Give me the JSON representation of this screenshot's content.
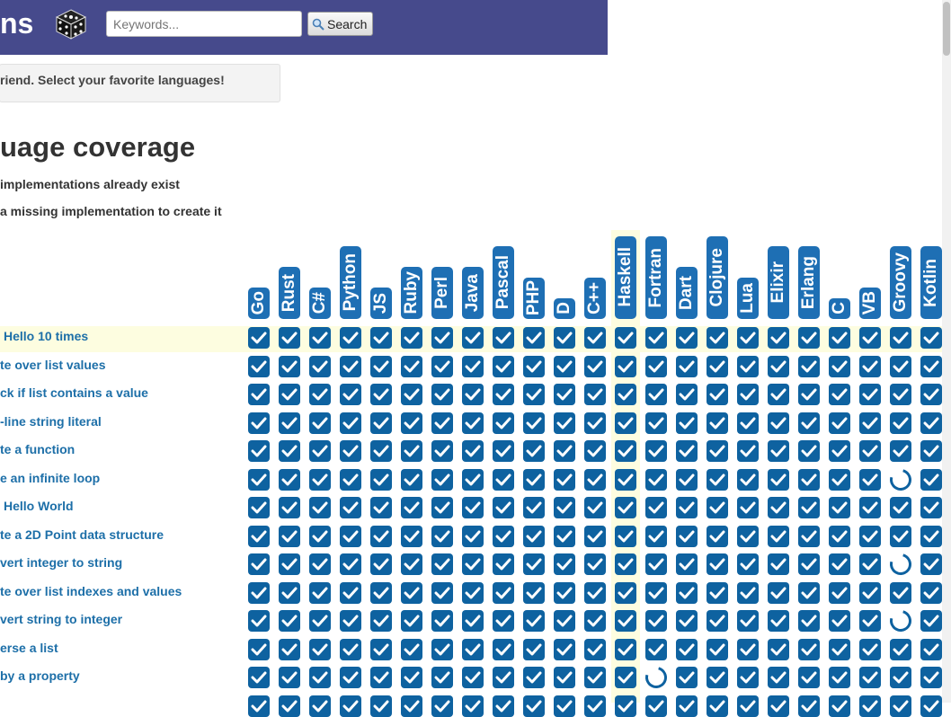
{
  "header": {
    "brand": "ns",
    "logo_icon": "dice-icon",
    "search": {
      "placeholder": "Keywords...",
      "value": "",
      "button_label": "Search",
      "button_icon": "magnifier-icon"
    },
    "colors": {
      "background": "#464a8c"
    }
  },
  "notice": {
    "text": "riend. Select your favorite languages!"
  },
  "coverage": {
    "title": "uage coverage",
    "legend_existing": "implementations already exist",
    "legend_missing": "a missing implementation to create it"
  },
  "languages": [
    "Go",
    "Rust",
    "C#",
    "Python",
    "JS",
    "Ruby",
    "Perl",
    "Java",
    "Pascal",
    "PHP",
    "D",
    "C++",
    "Haskell",
    "Fortran",
    "Dart",
    "Clojure",
    "Lua",
    "Elixir",
    "Erlang",
    "C",
    "VB",
    "Groovy",
    "Kotlin"
  ],
  "highlight": {
    "language": "Haskell",
    "row": "Hello 10 times",
    "color": "#fdfde0"
  },
  "colors": {
    "check": "#0e62a0",
    "pill": "#1e6fb4",
    "link": "#1d6fa8"
  },
  "idioms": [
    {
      "label": "Hello 10 times",
      "missing": []
    },
    {
      "label": "te over list values",
      "missing": []
    },
    {
      "label": "ck if list contains a value",
      "missing": []
    },
    {
      "label": "-line string literal",
      "missing": []
    },
    {
      "label": "te a function",
      "missing": []
    },
    {
      "label": "e an infinite loop",
      "missing": [
        "Groovy"
      ]
    },
    {
      "label": "Hello World",
      "missing": []
    },
    {
      "label": "te a 2D Point data structure",
      "missing": []
    },
    {
      "label": "vert integer to string",
      "missing": [
        "Groovy"
      ]
    },
    {
      "label": "te over list indexes and values",
      "missing": []
    },
    {
      "label": "vert string to integer",
      "missing": [
        "Groovy"
      ]
    },
    {
      "label": "erse a list",
      "missing": []
    },
    {
      "label": "by a property",
      "missing": [
        "Fortran"
      ]
    },
    {
      "label": "",
      "missing": []
    }
  ]
}
